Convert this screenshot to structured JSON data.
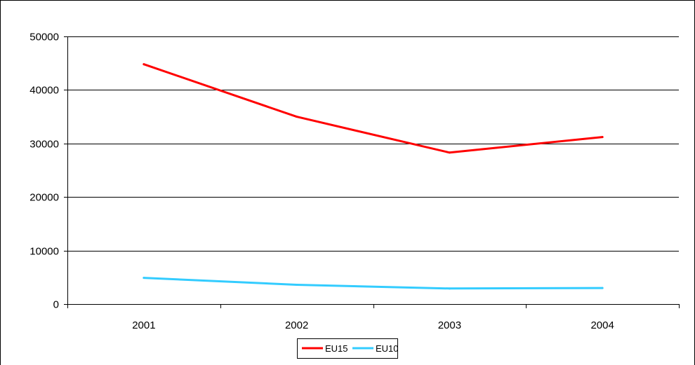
{
  "chart_data": {
    "type": "line",
    "categories": [
      "2001",
      "2002",
      "2003",
      "2004"
    ],
    "series": [
      {
        "name": "EU15",
        "color": "#ff0000",
        "values": [
          44800,
          35000,
          28300,
          31200
        ]
      },
      {
        "name": "EU10",
        "color": "#33ccff",
        "values": [
          4900,
          3600,
          2900,
          3000
        ]
      }
    ],
    "y_ticks": [
      "0",
      "10000",
      "20000",
      "30000",
      "40000",
      "50000"
    ],
    "ylim": [
      0,
      50000
    ],
    "grid": "horizontal",
    "legend_position": "bottom-center",
    "title": "",
    "xlabel": "",
    "ylabel": ""
  }
}
